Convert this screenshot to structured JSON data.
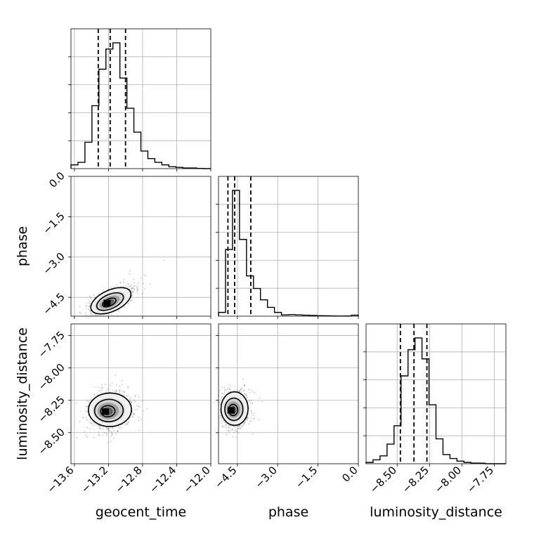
{
  "chart_data": {
    "type": "corner",
    "grid": true,
    "parameters": [
      {
        "name": "geocent_time",
        "label": "geocent_time",
        "range": [
          -13.64,
          -12.0
        ],
        "ticks": [
          "-13.6",
          "-13.2",
          "-12.8",
          "-12.4",
          "-12.0"
        ],
        "tick_values": [
          -13.6,
          -13.2,
          -12.8,
          -12.4,
          -12.0
        ],
        "quantiles": [
          -13.32,
          -13.18,
          -13.0
        ],
        "hist_bins": [
          -13.64,
          -13.556,
          -13.472,
          -13.388,
          -13.304,
          -13.22,
          -13.136,
          -13.052,
          -12.968,
          -12.884,
          -12.8,
          -12.716,
          -12.632,
          -12.548,
          -12.464,
          -12.38,
          -12.296,
          -12.212,
          -12.128,
          -12.044
        ],
        "hist_counts": [
          0.03,
          0.05,
          0.21,
          0.5,
          0.79,
          0.95,
          1.0,
          0.72,
          0.48,
          0.29,
          0.14,
          0.08,
          0.05,
          0.03,
          0.015,
          0.01,
          0.005,
          0.005,
          0.002,
          0.0
        ]
      },
      {
        "name": "phase",
        "label": "phase",
        "range": [
          -5.2,
          0.0
        ],
        "ticks": [
          "0.0",
          "-1.5",
          "-3.0",
          "-4.5"
        ],
        "tick_values": [
          0.0,
          -1.5,
          -3.0,
          -4.5
        ],
        "quantiles": [
          -4.85,
          -4.6,
          -4.0
        ],
        "hist_bins": [
          -5.2,
          -4.94,
          -4.68,
          -4.42,
          -4.16,
          -3.9,
          -3.64,
          -3.38,
          -3.12,
          -2.86,
          -2.6,
          -2.34,
          -2.08,
          -1.82,
          -1.56,
          -1.3,
          -1.04,
          -0.78,
          -0.52,
          -0.26
        ],
        "hist_counts": [
          0.03,
          0.53,
          1.0,
          0.61,
          0.32,
          0.22,
          0.13,
          0.07,
          0.03,
          0.01,
          0.012,
          0.01,
          0.008,
          0.006,
          0.004,
          0.003,
          0.002,
          0.001,
          0.002,
          0.008
        ]
      },
      {
        "name": "luminosity_distance",
        "label": "luminosity_distance",
        "range": [
          -8.74,
          -7.66
        ],
        "ticks": [
          "-8.50",
          "-8.25",
          "-8.00",
          "-7.75"
        ],
        "tick_values": [
          -8.5,
          -8.25,
          -8.0,
          -7.75
        ],
        "quantiles": [
          -8.475,
          -8.37,
          -8.27
        ],
        "hist_bins": [
          -8.74,
          -8.686,
          -8.632,
          -8.578,
          -8.524,
          -8.47,
          -8.416,
          -8.362,
          -8.308,
          -8.254,
          -8.2,
          -8.146,
          -8.092,
          -8.038,
          -7.984,
          -7.93,
          -7.876,
          -7.822,
          -7.768,
          -7.714
        ],
        "hist_counts": [
          0.01,
          0.03,
          0.06,
          0.15,
          0.29,
          0.67,
          0.87,
          0.96,
          0.8,
          0.45,
          0.19,
          0.07,
          0.04,
          0.02,
          0.01,
          0.005,
          0.004,
          0.0,
          0.0,
          0.0
        ]
      }
    ],
    "pairs": [
      {
        "x": "geocent_time",
        "y": "phase",
        "center": [
          -13.2,
          -4.72
        ],
        "spread": [
          0.12,
          0.23
        ],
        "corr": 0.6,
        "contour_levels": [
          0.5,
          1.0,
          1.5,
          2.0
        ]
      },
      {
        "x": "geocent_time",
        "y": "luminosity_distance",
        "center": [
          -13.22,
          -8.34
        ],
        "spread": [
          0.12,
          0.075
        ],
        "corr": 0.1,
        "contour_levels": [
          0.5,
          1.0,
          1.5,
          2.0
        ]
      },
      {
        "x": "phase",
        "y": "luminosity_distance",
        "center": [
          -4.68,
          -8.33
        ],
        "spread": [
          0.24,
          0.075
        ],
        "corr": 0.0,
        "contour_levels": [
          0.5,
          1.0,
          1.5,
          2.0
        ]
      }
    ]
  }
}
